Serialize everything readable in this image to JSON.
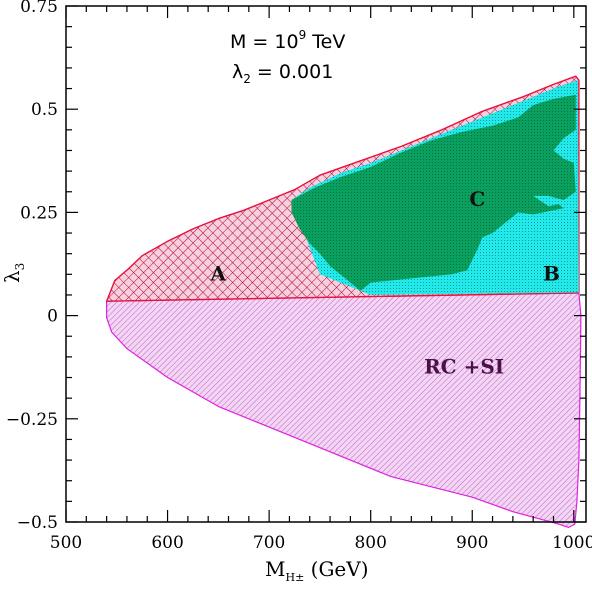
{
  "chart_data": {
    "type": "area",
    "xlabel_main": "M",
    "xlabel_sub": "H±",
    "xlabel_unit": " (GeV)",
    "ylabel_main": "λ",
    "ylabel_sub": "3",
    "xlim": [
      500,
      1012
    ],
    "ylim": [
      -0.5,
      0.75
    ],
    "xticks": [
      500,
      600,
      700,
      800,
      900,
      1000
    ],
    "xtick_labels": [
      "500",
      "600",
      "700",
      "800",
      "900",
      "1000"
    ],
    "yticks": [
      -0.5,
      -0.25,
      0,
      0.25,
      0.5,
      0.75
    ],
    "ytick_labels": [
      "−0.5",
      "−0.25",
      "0",
      "0.25",
      "0.5",
      "0.75"
    ],
    "annotations": {
      "line1_prefix": "M = 10",
      "line1_exp": "9",
      "line1_suffix": " TeV",
      "line2_main": "λ",
      "line2_sub": "2",
      "line2_suffix": " = 0.001"
    },
    "colors": {
      "rcsi_fill": "#e8b0e8",
      "rcsi_edge": "#e020e0",
      "a_fill": "#f0b4c8",
      "a_edge": "#e8103c",
      "b_fill": "#20ecec",
      "c_fill": "#0aa060"
    },
    "regions": [
      {
        "name": "RC +SI",
        "label_at": [
          892,
          -0.14
        ],
        "label_color_key": "rcsi",
        "boundary": [
          [
            540,
            0.035
          ],
          [
            1005,
            0.055
          ],
          [
            1007,
            0.0
          ],
          [
            1006,
            -0.2
          ],
          [
            1005,
            -0.35
          ],
          [
            1003,
            -0.45
          ],
          [
            1001,
            -0.505
          ],
          [
            995,
            -0.513
          ],
          [
            985,
            -0.505
          ],
          [
            940,
            -0.475
          ],
          [
            900,
            -0.44
          ],
          [
            820,
            -0.39
          ],
          [
            760,
            -0.33
          ],
          [
            700,
            -0.27
          ],
          [
            650,
            -0.22
          ],
          [
            600,
            -0.15
          ],
          [
            560,
            -0.08
          ],
          [
            545,
            -0.04
          ],
          [
            540,
            -0.005
          ]
        ]
      },
      {
        "name": "A",
        "label_at": [
          650,
          0.085
        ],
        "boundary": [
          [
            540,
            0.035
          ],
          [
            548,
            0.085
          ],
          [
            560,
            0.11
          ],
          [
            575,
            0.145
          ],
          [
            600,
            0.18
          ],
          [
            625,
            0.21
          ],
          [
            650,
            0.235
          ],
          [
            675,
            0.255
          ],
          [
            700,
            0.28
          ],
          [
            725,
            0.305
          ],
          [
            750,
            0.34
          ],
          [
            790,
            0.375
          ],
          [
            830,
            0.41
          ],
          [
            870,
            0.45
          ],
          [
            910,
            0.495
          ],
          [
            950,
            0.53
          ],
          [
            980,
            0.56
          ],
          [
            1002,
            0.58
          ],
          [
            1005,
            0.57
          ],
          [
            1005,
            0.055
          ],
          [
            540,
            0.035
          ]
        ]
      },
      {
        "name": "B",
        "label_at": [
          978,
          0.085
        ],
        "boundary": [
          [
            722,
            0.28
          ],
          [
            740,
            0.31
          ],
          [
            770,
            0.345
          ],
          [
            800,
            0.37
          ],
          [
            840,
            0.41
          ],
          [
            880,
            0.45
          ],
          [
            920,
            0.49
          ],
          [
            955,
            0.525
          ],
          [
            985,
            0.555
          ],
          [
            1004,
            0.57
          ],
          [
            1005,
            0.056
          ],
          [
            790,
            0.05
          ],
          [
            800,
            0.05
          ],
          [
            750,
            0.1
          ],
          [
            722,
            0.28
          ]
        ]
      },
      {
        "name": "C",
        "label_at": [
          905,
          0.265
        ],
        "boundary": [
          [
            722,
            0.28
          ],
          [
            745,
            0.31
          ],
          [
            770,
            0.335
          ],
          [
            800,
            0.36
          ],
          [
            830,
            0.395
          ],
          [
            860,
            0.425
          ],
          [
            890,
            0.445
          ],
          [
            920,
            0.46
          ],
          [
            945,
            0.48
          ],
          [
            960,
            0.51
          ],
          [
            980,
            0.525
          ],
          [
            1002,
            0.535
          ],
          [
            1002,
            0.45
          ],
          [
            990,
            0.43
          ],
          [
            980,
            0.4
          ],
          [
            990,
            0.38
          ],
          [
            1000,
            0.37
          ],
          [
            1002,
            0.3
          ],
          [
            990,
            0.28
          ],
          [
            975,
            0.29
          ],
          [
            960,
            0.29
          ],
          [
            975,
            0.265
          ],
          [
            985,
            0.27
          ],
          [
            990,
            0.26
          ],
          [
            980,
            0.255
          ],
          [
            960,
            0.245
          ],
          [
            945,
            0.25
          ],
          [
            930,
            0.22
          ],
          [
            920,
            0.2
          ],
          [
            910,
            0.19
          ],
          [
            905,
            0.16
          ],
          [
            895,
            0.11
          ],
          [
            880,
            0.1
          ],
          [
            860,
            0.095
          ],
          [
            840,
            0.09
          ],
          [
            820,
            0.085
          ],
          [
            800,
            0.08
          ],
          [
            790,
            0.06
          ],
          [
            775,
            0.09
          ],
          [
            760,
            0.12
          ],
          [
            750,
            0.15
          ],
          [
            740,
            0.175
          ],
          [
            730,
            0.21
          ],
          [
            722,
            0.25
          ],
          [
            722,
            0.28
          ]
        ]
      }
    ]
  }
}
